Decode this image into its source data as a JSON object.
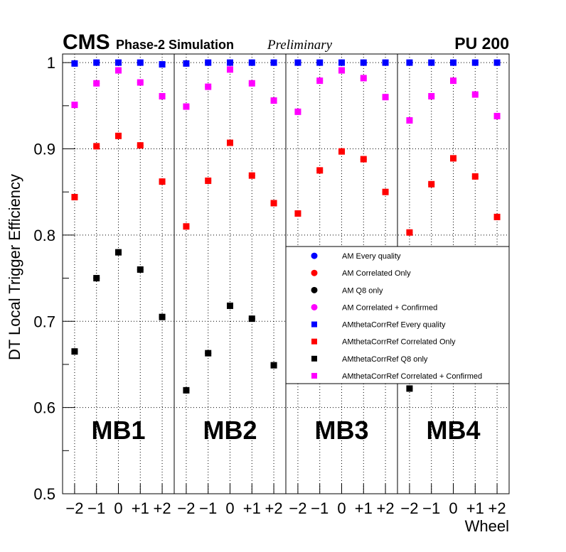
{
  "header": {
    "experiment": "CMS",
    "subtitle": "Phase-2 Simulation",
    "status": "Preliminary",
    "pileup": "PU 200"
  },
  "chart_data": {
    "type": "scatter",
    "title": "",
    "ylabel": "DT Local Trigger Efficiency",
    "xlabel": "Wheel",
    "ylim": [
      0.5,
      1.01
    ],
    "y_ticks": [
      "0.5",
      "0.6",
      "0.7",
      "0.8",
      "0.9",
      "1"
    ],
    "grid": true,
    "stations": [
      "MB1",
      "MB2",
      "MB3",
      "MB4"
    ],
    "wheel_labels": [
      "−2",
      "−1",
      "0",
      "+1",
      "+2"
    ],
    "legend_position": "right, middle (inside MB3-MB4 panels)",
    "series": [
      {
        "name": "AM Every quality",
        "marker": "circle",
        "color": "#0000ff",
        "values": [
          [
            0.999,
            1.0,
            1.0,
            1.0,
            0.998
          ],
          [
            0.999,
            1.0,
            1.0,
            1.0,
            1.0
          ],
          [
            1.0,
            1.0,
            1.0,
            1.0,
            1.0
          ],
          [
            1.0,
            1.0,
            1.0,
            1.0,
            1.0
          ]
        ]
      },
      {
        "name": "AM Correlated Only",
        "marker": "circle",
        "color": "#ff0000",
        "values": [
          [
            0.844,
            0.903,
            0.915,
            0.904,
            0.862
          ],
          [
            0.81,
            0.863,
            0.907,
            0.869,
            0.837
          ],
          [
            0.825,
            0.875,
            0.897,
            0.888,
            0.85
          ],
          [
            0.803,
            0.859,
            0.889,
            0.868,
            0.821
          ]
        ]
      },
      {
        "name": "AM Q8 only",
        "marker": "circle",
        "color": "#000000",
        "values": [
          [
            0.665,
            0.75,
            0.78,
            0.76,
            0.705
          ],
          [
            0.62,
            0.663,
            0.718,
            0.703,
            0.649
          ],
          [
            null,
            null,
            null,
            null,
            null
          ],
          [
            0.622,
            null,
            null,
            null,
            null
          ]
        ]
      },
      {
        "name": "AM Correlated + Confirmed",
        "marker": "circle",
        "color": "#ff00ff",
        "values": [
          [
            0.951,
            0.976,
            0.991,
            0.977,
            0.961
          ],
          [
            0.949,
            0.972,
            0.992,
            0.976,
            0.956
          ],
          [
            0.943,
            0.979,
            0.991,
            0.982,
            0.96
          ],
          [
            0.933,
            0.961,
            0.979,
            0.963,
            0.938
          ]
        ]
      },
      {
        "name": "AMthetaCorrRef Every quality",
        "marker": "square",
        "color": "#0000ff",
        "values": [
          [
            0.999,
            1.0,
            1.0,
            1.0,
            0.998
          ],
          [
            0.999,
            1.0,
            1.0,
            1.0,
            1.0
          ],
          [
            1.0,
            1.0,
            1.0,
            1.0,
            1.0
          ],
          [
            1.0,
            1.0,
            1.0,
            1.0,
            1.0
          ]
        ]
      },
      {
        "name": "AMthetaCorrRef Correlated Only",
        "marker": "square",
        "color": "#ff0000",
        "values": [
          [
            0.844,
            0.903,
            0.915,
            0.904,
            0.862
          ],
          [
            0.81,
            0.863,
            0.907,
            0.869,
            0.837
          ],
          [
            0.825,
            0.875,
            0.897,
            0.888,
            0.85
          ],
          [
            0.803,
            0.859,
            0.889,
            0.868,
            0.821
          ]
        ]
      },
      {
        "name": "AMthetaCorrRef Q8 only",
        "marker": "square",
        "color": "#000000",
        "values": [
          [
            0.665,
            0.75,
            0.78,
            0.76,
            0.705
          ],
          [
            0.62,
            0.663,
            0.718,
            0.703,
            0.649
          ],
          [
            null,
            null,
            null,
            null,
            null
          ],
          [
            0.622,
            null,
            null,
            null,
            null
          ]
        ]
      },
      {
        "name": "AMthetaCorrRef Correlated + Confirmed",
        "marker": "square",
        "color": "#ff00ff",
        "values": [
          [
            0.951,
            0.976,
            0.991,
            0.977,
            0.961
          ],
          [
            0.949,
            0.972,
            0.992,
            0.976,
            0.956
          ],
          [
            0.943,
            0.979,
            0.991,
            0.982,
            0.96
          ],
          [
            0.933,
            0.961,
            0.979,
            0.963,
            0.938
          ]
        ]
      }
    ]
  }
}
